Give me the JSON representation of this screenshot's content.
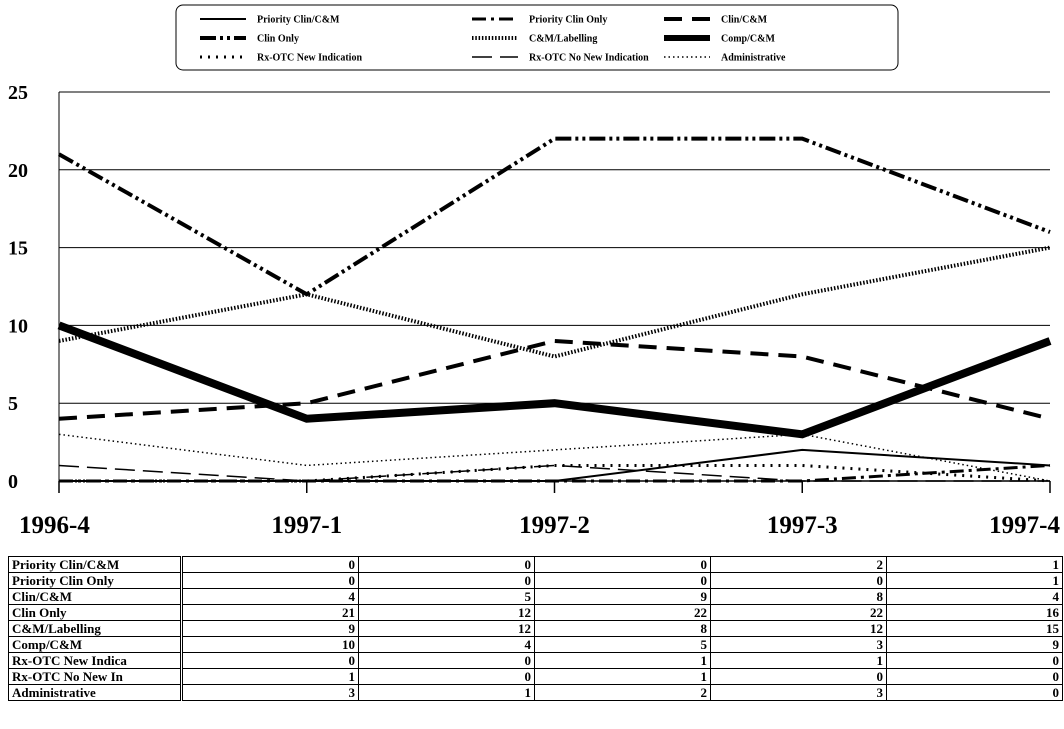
{
  "chart_data": {
    "type": "line",
    "categories": [
      "1996-4",
      "1997-1",
      "1997-2",
      "1997-3",
      "1997-4"
    ],
    "ylim": [
      0,
      25
    ],
    "yticks": [
      0,
      5,
      10,
      15,
      20,
      25
    ],
    "grid": true,
    "legend_position": "top",
    "series": [
      {
        "name": "Priority Clin/C&M",
        "values": [
          0,
          0,
          0,
          2,
          1
        ],
        "style": "solid-thin"
      },
      {
        "name": "Priority Clin Only",
        "values": [
          0,
          0,
          0,
          0,
          1
        ],
        "style": "dashdot"
      },
      {
        "name": "Clin/C&M",
        "values": [
          4,
          5,
          9,
          8,
          4
        ],
        "style": "dashed-thick"
      },
      {
        "name": "Clin Only",
        "values": [
          21,
          12,
          22,
          22,
          16
        ],
        "style": "dashdotdot"
      },
      {
        "name": "C&M/Labelling",
        "values": [
          9,
          12,
          8,
          12,
          15
        ],
        "style": "dotted-dense"
      },
      {
        "name": "Comp/C&M",
        "values": [
          10,
          4,
          5,
          3,
          9
        ],
        "style": "solid-heavy"
      },
      {
        "name": "Rx-OTC New Indication",
        "values": [
          0,
          0,
          1,
          1,
          0
        ],
        "style": "dotted-sparse"
      },
      {
        "name": "Rx-OTC No New Indication",
        "values": [
          1,
          0,
          1,
          0,
          0
        ],
        "style": "long-dash"
      },
      {
        "name": "Administrative",
        "values": [
          3,
          1,
          2,
          3,
          0
        ],
        "style": "fine-dotted"
      }
    ]
  },
  "table": {
    "rows": [
      {
        "label": "Priority Clin/C&M",
        "values": [
          "0",
          "0",
          "0",
          "2",
          "1"
        ]
      },
      {
        "label": "Priority Clin Only",
        "values": [
          "0",
          "0",
          "0",
          "0",
          "1"
        ]
      },
      {
        "label": "Clin/C&M",
        "values": [
          "4",
          "5",
          "9",
          "8",
          "4"
        ]
      },
      {
        "label": "Clin Only",
        "values": [
          "21",
          "12",
          "22",
          "22",
          "16"
        ]
      },
      {
        "label": "C&M/Labelling",
        "values": [
          "9",
          "12",
          "8",
          "12",
          "15"
        ]
      },
      {
        "label": "Comp/C&M",
        "values": [
          "10",
          "4",
          "5",
          "3",
          "9"
        ]
      },
      {
        "label": "Rx-OTC New Indica",
        "values": [
          "0",
          "0",
          "1",
          "1",
          "0"
        ]
      },
      {
        "label": "Rx-OTC No New In",
        "values": [
          "1",
          "0",
          "1",
          "0",
          "0"
        ]
      },
      {
        "label": "Administrative",
        "values": [
          "3",
          "1",
          "2",
          "3",
          "0"
        ]
      }
    ]
  }
}
